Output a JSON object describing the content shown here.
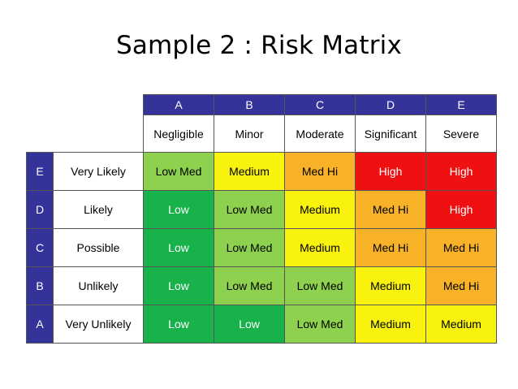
{
  "title": "Sample 2 : Risk Matrix",
  "colors": {
    "header": "#333399",
    "low": "#17b34a",
    "low_med": "#8ed14f",
    "medium": "#f8f20e",
    "med_hi": "#f8b228",
    "high": "#ef1111"
  },
  "matrix": {
    "columns": [
      {
        "letter": "A",
        "label": "Negligible"
      },
      {
        "letter": "B",
        "label": "Minor"
      },
      {
        "letter": "C",
        "label": "Moderate"
      },
      {
        "letter": "D",
        "label": "Significant"
      },
      {
        "letter": "E",
        "label": "Severe"
      }
    ],
    "rows": [
      {
        "letter": "E",
        "label": "Very Likely",
        "cells": [
          "Low Med",
          "Medium",
          "Med Hi",
          "High",
          "High"
        ]
      },
      {
        "letter": "D",
        "label": "Likely",
        "cells": [
          "Low",
          "Low Med",
          "Medium",
          "Med Hi",
          "High"
        ]
      },
      {
        "letter": "C",
        "label": "Possible",
        "cells": [
          "Low",
          "Low Med",
          "Medium",
          "Med Hi",
          "Med Hi"
        ]
      },
      {
        "letter": "B",
        "label": "Unlikely",
        "cells": [
          "Low",
          "Low Med",
          "Low Med",
          "Medium",
          "Med Hi"
        ]
      },
      {
        "letter": "A",
        "label": "Very Unlikely",
        "cells": [
          "Low",
          "Low",
          "Low Med",
          "Medium",
          "Medium"
        ]
      }
    ]
  }
}
